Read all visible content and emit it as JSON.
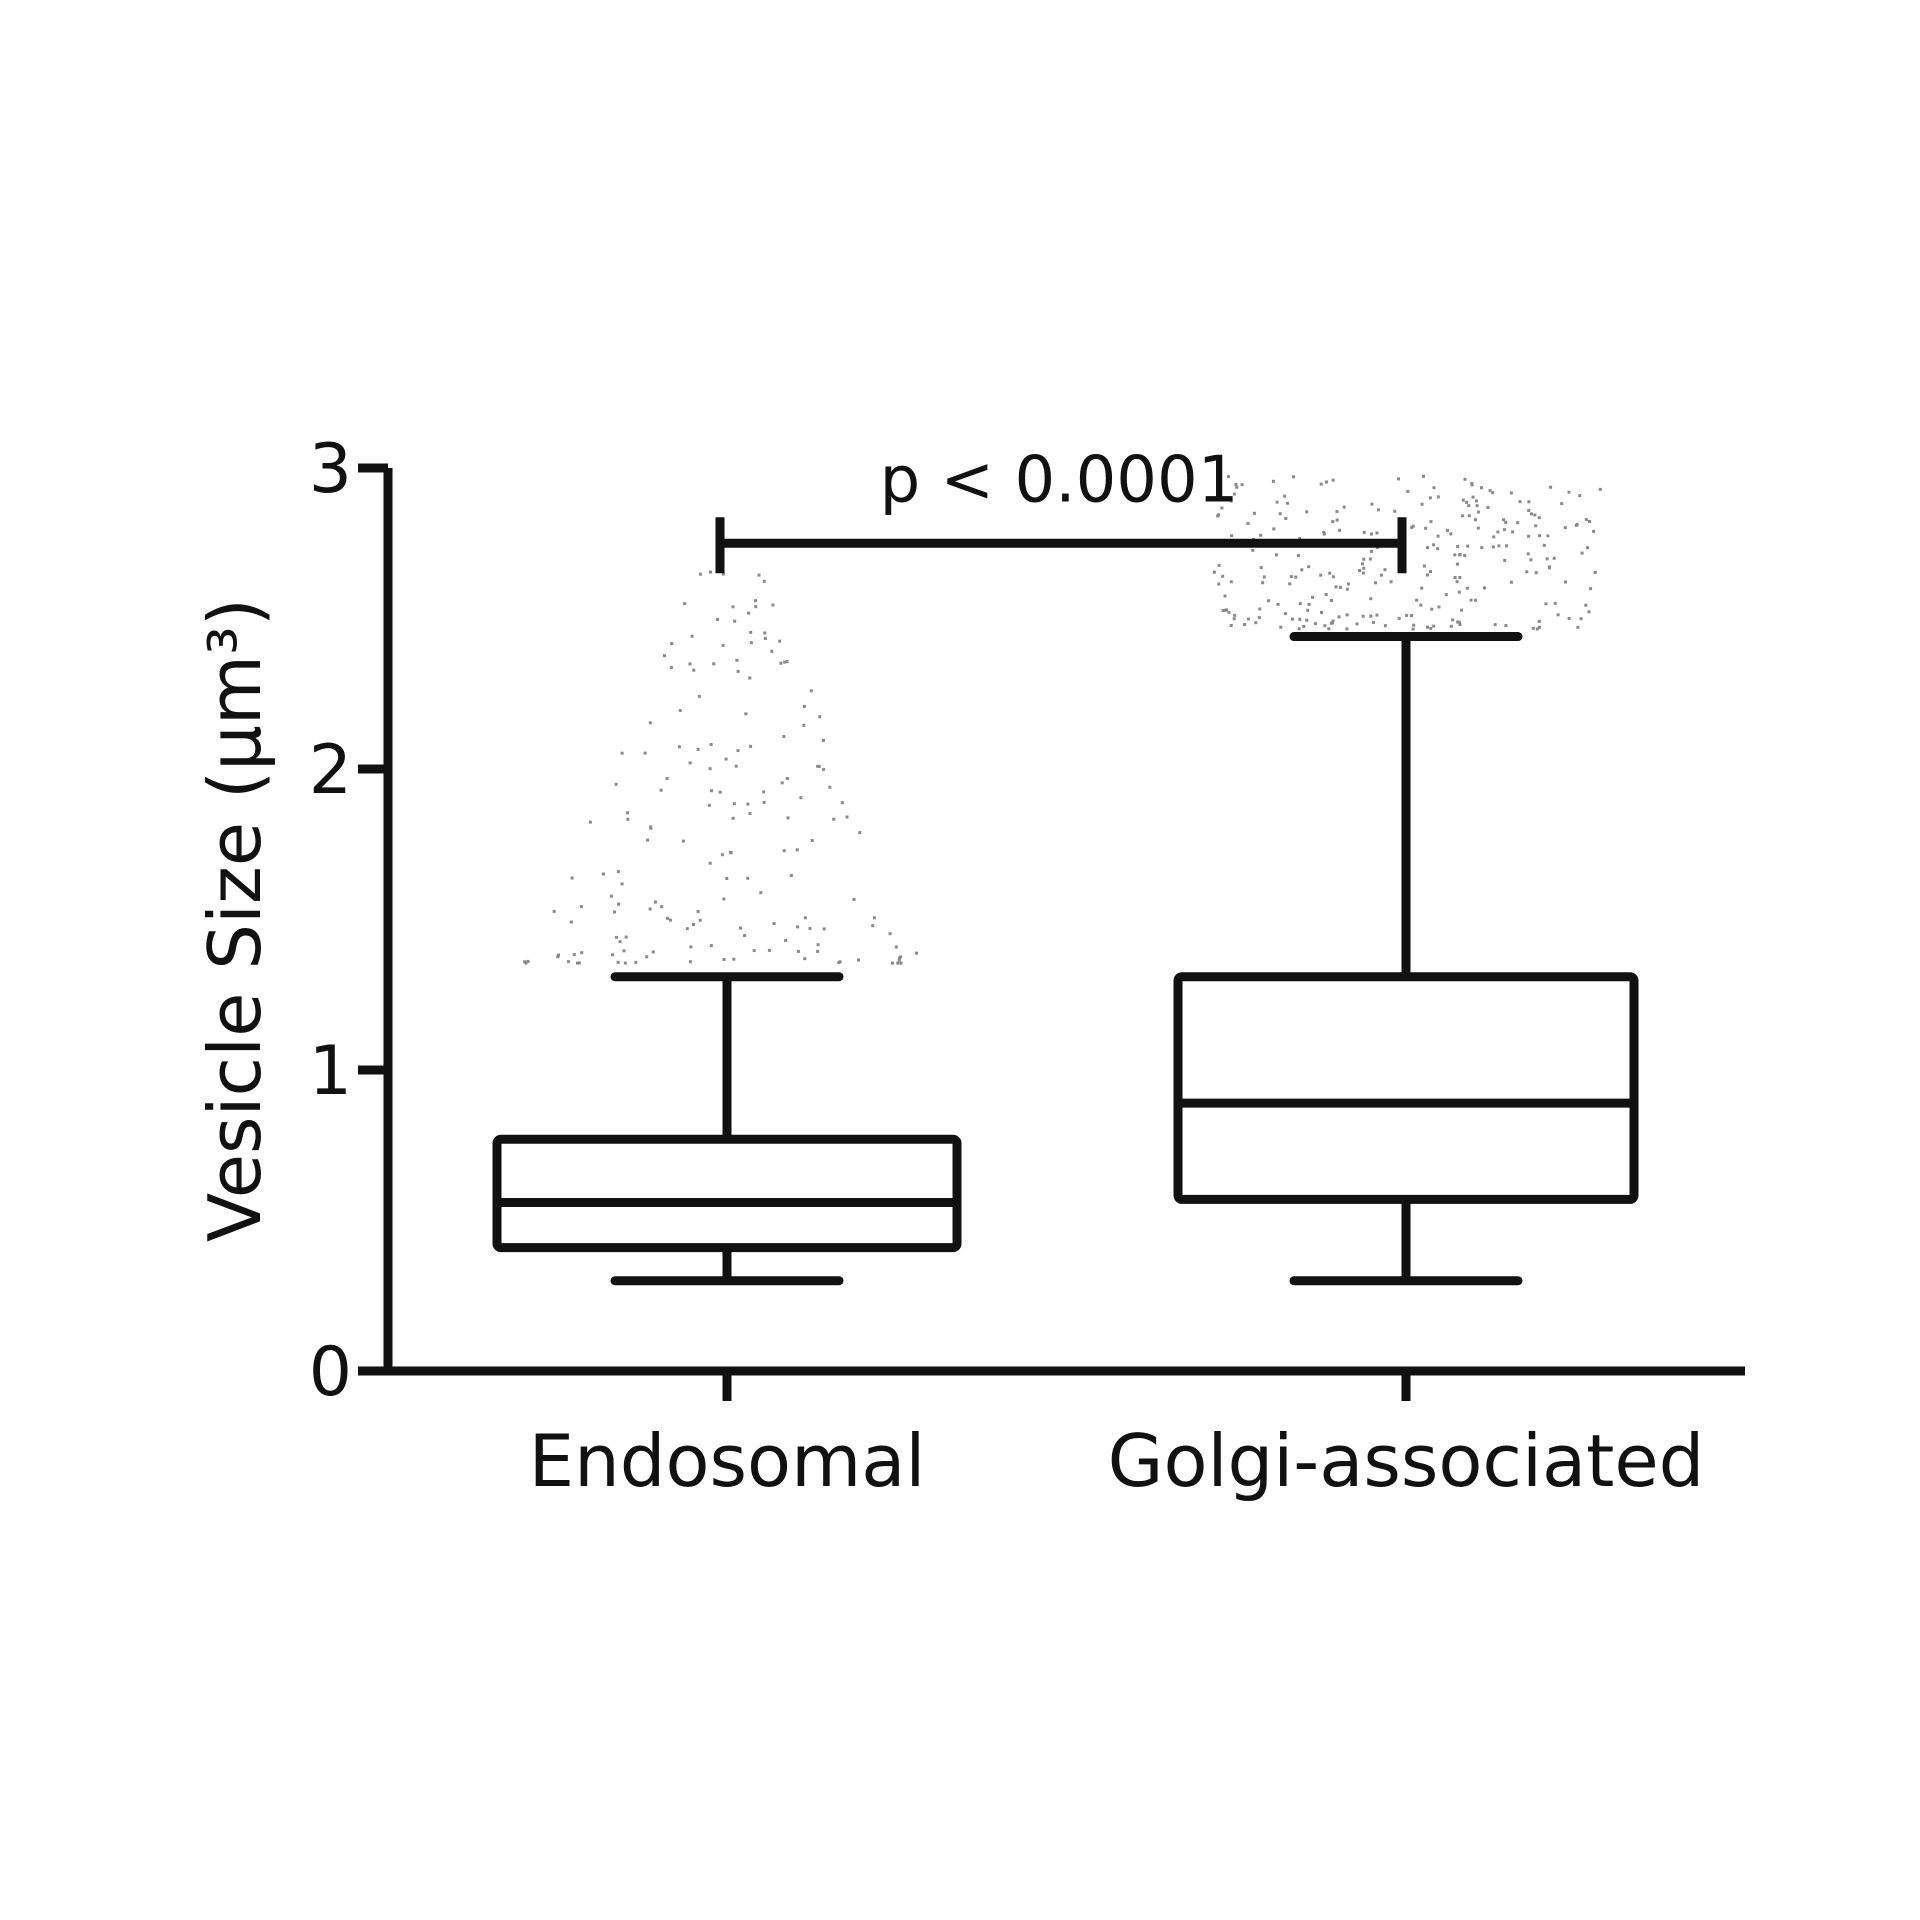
{
  "chart_data": {
    "type": "box",
    "title": "",
    "xlabel": "",
    "ylabel": "Vesicle Size  (µm³)",
    "ylim": [
      0,
      3
    ],
    "yticks": [
      "0",
      "1",
      "2",
      "3"
    ],
    "categories": [
      "Endosomal",
      "Golgi-associated"
    ],
    "boxes": [
      {
        "category": "Endosomal",
        "whisker_low": 0.3,
        "q1": 0.41,
        "median": 0.56,
        "q3": 0.77,
        "whisker_high": 1.31,
        "outliers_range": [
          1.36,
          2.67
        ]
      },
      {
        "category": "Golgi-associated",
        "whisker_low": 0.3,
        "q1": 0.57,
        "median": 0.89,
        "q3": 1.31,
        "whisker_high": 2.44,
        "outliers_range": [
          2.47,
          2.98
        ]
      }
    ],
    "annotation": {
      "text": "p < 0.0001",
      "y": 2.75,
      "from": "Endosomal",
      "to": "Golgi-associated"
    },
    "grid": false,
    "legend": "none",
    "color": "#111111",
    "outlier_color": "#8a8a8a"
  }
}
